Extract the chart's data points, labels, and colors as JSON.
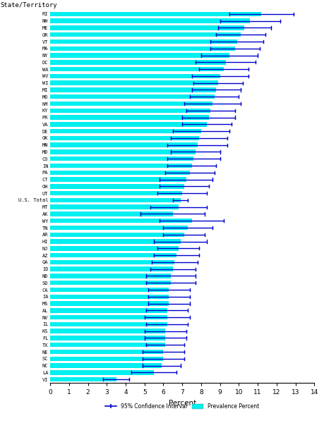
{
  "xlabel": "Percent",
  "ylabel": "State/Territory",
  "xlim": [
    0,
    14
  ],
  "xticks": [
    0,
    1,
    2,
    3,
    4,
    5,
    6,
    7,
    8,
    9,
    10,
    11,
    12,
    13,
    14
  ],
  "bar_color": "#00EFEF",
  "ci_color": "#0000CC",
  "states": [
    "RI",
    "NH",
    "ME",
    "OR",
    "VT",
    "MA",
    "NY",
    "DC",
    "WA",
    "WV",
    "WI",
    "MI",
    "MO",
    "NM",
    "KY",
    "PR",
    "VA",
    "DE",
    "OK",
    "MN",
    "MD",
    "CO",
    "IN",
    "PA",
    "CT",
    "OH",
    "UT",
    "U.S. Total",
    "MT",
    "AK",
    "WY",
    "TN",
    "AR",
    "HI",
    "NJ",
    "AZ",
    "GA",
    "ID",
    "ND",
    "SD",
    "CA",
    "IA",
    "MS",
    "AL",
    "NV",
    "IL",
    "KS",
    "FL",
    "TX",
    "NE",
    "SC",
    "NC",
    "LA",
    "VI"
  ],
  "prevalence": [
    11.2,
    10.6,
    10.3,
    10.1,
    9.9,
    9.8,
    9.5,
    9.3,
    9.2,
    9.0,
    8.9,
    8.8,
    8.7,
    8.6,
    8.5,
    8.4,
    8.3,
    8.0,
    7.9,
    7.8,
    7.7,
    7.6,
    7.5,
    7.4,
    7.2,
    7.1,
    7.0,
    6.9,
    6.8,
    6.5,
    7.5,
    7.3,
    7.1,
    6.9,
    6.8,
    6.7,
    6.6,
    6.5,
    6.4,
    6.4,
    6.3,
    6.3,
    6.3,
    6.2,
    6.2,
    6.2,
    6.1,
    6.1,
    6.1,
    6.0,
    6.0,
    5.9,
    5.5,
    3.5
  ],
  "ci_low": [
    9.5,
    9.0,
    8.9,
    8.8,
    8.5,
    8.5,
    8.0,
    7.7,
    7.9,
    7.5,
    7.6,
    7.5,
    7.4,
    7.1,
    7.2,
    7.0,
    7.0,
    6.5,
    6.4,
    6.2,
    6.4,
    6.2,
    6.2,
    6.1,
    5.8,
    5.8,
    5.7,
    6.5,
    5.3,
    4.8,
    5.8,
    6.0,
    6.0,
    5.5,
    5.7,
    5.5,
    5.4,
    5.3,
    5.1,
    5.1,
    5.2,
    5.2,
    5.2,
    5.1,
    5.0,
    5.1,
    5.0,
    5.0,
    5.1,
    4.9,
    4.9,
    4.9,
    4.3,
    2.8
  ],
  "ci_high": [
    12.9,
    12.2,
    11.7,
    11.4,
    11.3,
    11.1,
    11.0,
    10.9,
    10.5,
    10.5,
    10.2,
    10.1,
    10.0,
    10.1,
    9.8,
    9.8,
    9.6,
    9.5,
    9.4,
    9.4,
    9.0,
    9.0,
    8.8,
    8.7,
    8.6,
    8.4,
    8.3,
    7.3,
    8.3,
    8.2,
    9.2,
    8.6,
    8.2,
    8.3,
    7.9,
    7.9,
    7.8,
    7.7,
    7.7,
    7.7,
    7.4,
    7.4,
    7.4,
    7.3,
    7.4,
    7.3,
    7.2,
    7.2,
    7.1,
    7.1,
    7.1,
    6.9,
    6.7,
    4.2
  ],
  "background_color": "#FFFFFF",
  "legend_ci_label": "95% Confidence Interval",
  "legend_prev_label": "Prevalence Percent"
}
